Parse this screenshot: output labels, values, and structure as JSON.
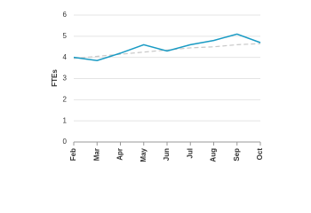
{
  "chart_data": {
    "type": "line",
    "y_label": "FTEs",
    "categories": [
      "Feb",
      "Mar",
      "Apr",
      "May",
      "Jun",
      "Jul",
      "Aug",
      "Sep",
      "Oct"
    ],
    "series": [
      {
        "color": "#1a9bc4",
        "dash": false,
        "values": [
          4.0,
          3.85,
          4.2,
          4.6,
          4.3,
          4.6,
          4.8,
          5.1,
          4.7
        ]
      },
      {
        "color": "#c8c8c8",
        "dash": true,
        "values": [
          3.95,
          4.05,
          4.15,
          4.25,
          4.35,
          4.45,
          4.5,
          4.6,
          4.65
        ]
      }
    ],
    "ylim": [
      0,
      6
    ],
    "yticks": [
      0,
      1,
      2,
      3,
      4,
      5,
      6
    ],
    "grid": true
  }
}
